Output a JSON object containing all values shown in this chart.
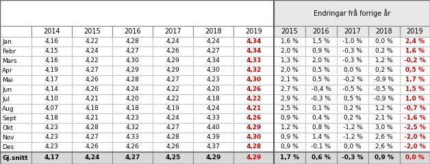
{
  "rows": [
    "Jan",
    "Febr",
    "Mars",
    "Apr",
    "Mai",
    "Jun",
    "Jul",
    "Aug",
    "Sept",
    "Okt",
    "Nov",
    "Des",
    "Gj.snitt"
  ],
  "cols_left": [
    "2014",
    "2015",
    "2016",
    "2017",
    "2018",
    "2019"
  ],
  "cols_right": [
    "2015",
    "2016",
    "2017",
    "2018",
    "2019"
  ],
  "header_right": "Endringar frå forrige år",
  "data_left": [
    [
      "4,16",
      "4,22",
      "4,28",
      "4,24",
      "4,24",
      "4,34"
    ],
    [
      "4,15",
      "4,24",
      "4,27",
      "4,26",
      "4,27",
      "4,34"
    ],
    [
      "4,16",
      "4,22",
      "4,30",
      "4,29",
      "4,34",
      "4,33"
    ],
    [
      "4,19",
      "4,27",
      "4,29",
      "4,29",
      "4,30",
      "4,32"
    ],
    [
      "4,17",
      "4,26",
      "4,28",
      "4,27",
      "4,23",
      "4,30"
    ],
    [
      "4,14",
      "4,26",
      "4,24",
      "4,22",
      "4,20",
      "4,26"
    ],
    [
      "4,10",
      "4,21",
      "4,20",
      "4,22",
      "4,18",
      "4,22"
    ],
    [
      "4,07",
      "4,18",
      "4,18",
      "4,19",
      "4,24",
      "4,21"
    ],
    [
      "4,18",
      "4,21",
      "4,23",
      "4,24",
      "4,33",
      "4,26"
    ],
    [
      "4,23",
      "4,28",
      "4,32",
      "4,27",
      "4,40",
      "4,29"
    ],
    [
      "4,23",
      "4,27",
      "4,33",
      "4,28",
      "4,39",
      "4,30"
    ],
    [
      "4,23",
      "4,26",
      "4,26",
      "4,26",
      "4,37",
      "4,28"
    ],
    [
      "4,17",
      "4,24",
      "4,27",
      "4,25",
      "4,29",
      "4,29"
    ]
  ],
  "data_right": [
    [
      "1,6 %",
      "1,5 %",
      "-1,0 %",
      "0,0 %",
      "2,4 %"
    ],
    [
      "2,0 %",
      "0,9 %",
      "-0,3 %",
      "0,2 %",
      "1,6 %"
    ],
    [
      "1,3 %",
      "2,0 %",
      "-0,3 %",
      "1,2 %",
      "-0,2 %"
    ],
    [
      "2,0 %",
      "0,5 %",
      "0,0 %",
      "0,2 %",
      "0,5 %"
    ],
    [
      "2,1 %",
      "0,5 %",
      "-0,2 %",
      "-0,9 %",
      "1,7 %"
    ],
    [
      "2,7 %",
      "-0,4 %",
      "-0,5 %",
      "-0,5 %",
      "1,5 %"
    ],
    [
      "2,9 %",
      "-0,3 %",
      "0,5 %",
      "-0,9 %",
      "1,0 %"
    ],
    [
      "2,5 %",
      "0,1 %",
      "0,2 %",
      "1,2 %",
      "-0,7 %"
    ],
    [
      "0,9 %",
      "0,4 %",
      "0,2 %",
      "2,1 %",
      "-1,6 %"
    ],
    [
      "1,2 %",
      "0,8 %",
      "-1,2 %",
      "3,0 %",
      "-2,5 %"
    ],
    [
      "0,9 %",
      "1,4 %",
      "-1,2 %",
      "2,6 %",
      "-2,0 %"
    ],
    [
      "0,9 %",
      "-0,1 %",
      "0,0 %",
      "2,6 %",
      "-2,0 %"
    ],
    [
      "1,7 %",
      "0,6 %",
      "-0,3 %",
      "0,9 %",
      "0,0 %"
    ]
  ],
  "color_normal": "#000000",
  "color_red": "#cc0000",
  "bg_header_left": "#ffffff",
  "bg_header_right": "#e8e8e8",
  "bg_white": "#ffffff",
  "bg_last_row": "#d8d8d8",
  "divider_col": 7,
  "total_cols": 12,
  "fontsize": 6.5,
  "header_fontsize": 7.0
}
